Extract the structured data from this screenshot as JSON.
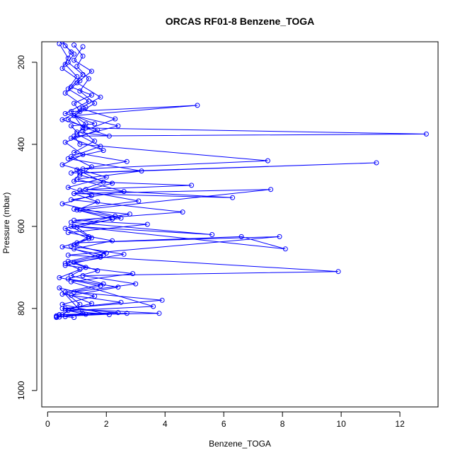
{
  "chart_data": {
    "type": "line",
    "title": "ORCAS RF01-8 Benzene_TOGA",
    "xlabel": "Benzene_TOGA",
    "ylabel": "Pressure (mbar)",
    "xlim": [
      -0.2,
      13.3
    ],
    "ylim": [
      1040,
      150
    ],
    "y_reversed": true,
    "grid": false,
    "legend": "none",
    "series_color": "#0000ff",
    "marker": "open-circle",
    "xticks": [
      0,
      2,
      4,
      6,
      8,
      10,
      12
    ],
    "yticks": [
      200,
      400,
      600,
      800,
      1000
    ],
    "series": [
      {
        "x": [
          0.6,
          0.9,
          0.7,
          1.2,
          0.8,
          1.5,
          0.9,
          1.1,
          0.7,
          1.3,
          2.1,
          1.0,
          0.8,
          1.6,
          0.9,
          5.1,
          0.8,
          1.2,
          12.9,
          0.9,
          1.1,
          7.5,
          1.2,
          0.8,
          11.2,
          1.1,
          0.9,
          4.9,
          1.3,
          6.3,
          0.9,
          7.6,
          1.1,
          2.8,
          0.8,
          5.6,
          0.9,
          8.1,
          6.6,
          1.0,
          7.9,
          0.7,
          9.9,
          1.2,
          3.0,
          0.9,
          3.9,
          0.5,
          2.4,
          0.4,
          0.3,
          0.6,
          0.9
        ],
        "y": [
          160,
          180,
          200,
          230,
          260,
          280,
          300,
          320,
          340,
          360,
          380,
          370,
          355,
          350,
          330,
          305,
          320,
          360,
          375,
          380,
          400,
          440,
          460,
          470,
          445,
          470,
          490,
          500,
          510,
          530,
          520,
          510,
          560,
          570,
          590,
          620,
          600,
          655,
          625,
          640,
          625,
          670,
          710,
          720,
          740,
          760,
          780,
          800,
          810,
          815,
          818,
          820,
          822
        ]
      },
      {
        "x": [
          0.5,
          0.8,
          0.6,
          1.0,
          0.7,
          1.4,
          0.6,
          2.4,
          0.8,
          1.9,
          0.7,
          3.2,
          1.0,
          2.6,
          0.8,
          4.6,
          0.9,
          3.4,
          0.7,
          2.2,
          0.9,
          1.8,
          0.6,
          2.9,
          0.8,
          3.6,
          0.7,
          2.1,
          0.5,
          1.6,
          0.4,
          1.2,
          0.3
        ],
        "y": [
          150,
          175,
          205,
          235,
          265,
          295,
          325,
          355,
          385,
          415,
          435,
          465,
          485,
          515,
          535,
          565,
          585,
          595,
          615,
          635,
          655,
          675,
          695,
          715,
          735,
          795,
          805,
          815,
          790,
          770,
          750,
          812,
          822
        ]
      },
      {
        "x": [
          0.4,
          0.7,
          0.5,
          1.1,
          0.6,
          1.3,
          0.5,
          1.7,
          0.6,
          1.2,
          0.5,
          2.0,
          0.7,
          1.5,
          0.5,
          2.3,
          0.6,
          1.4,
          0.5,
          1.9,
          0.6,
          1.1,
          0.4,
          1.8,
          0.5,
          2.5,
          0.6,
          3.8,
          0.4,
          2.7,
          0.3
        ],
        "y": [
          155,
          190,
          215,
          245,
          275,
          310,
          340,
          365,
          395,
          425,
          450,
          480,
          505,
          525,
          545,
          575,
          605,
          630,
          650,
          670,
          690,
          705,
          725,
          745,
          765,
          785,
          800,
          812,
          816,
          812,
          820
        ]
      },
      {
        "x": [
          0.9,
          1.2,
          1.0,
          1.4,
          1.1,
          1.6,
          0.9,
          1.3,
          1.0,
          1.8,
          0.8,
          1.5,
          1.1,
          2.2,
          0.9,
          1.7,
          1.0,
          2.5,
          0.8,
          1.4,
          0.9,
          2.0,
          0.7,
          1.3,
          0.8,
          1.9,
          0.6,
          1.1,
          0.5
        ],
        "y": [
          158,
          185,
          210,
          240,
          270,
          300,
          330,
          350,
          375,
          405,
          430,
          455,
          475,
          495,
          520,
          540,
          560,
          580,
          600,
          625,
          645,
          665,
          685,
          700,
          720,
          740,
          760,
          790,
          815
        ]
      },
      {
        "x": [
          1.2,
          0.9,
          1.5,
          1.0,
          1.8,
          1.1,
          2.3,
          1.2,
          1.6,
          0.9,
          2.7,
          1.0,
          1.9,
          1.1,
          3.1,
          0.9,
          2.2,
          1.0,
          1.5,
          0.8,
          2.6,
          0.9,
          1.7,
          0.7,
          2.4,
          0.8,
          1.5,
          0.6,
          1.3,
          0.4
        ],
        "y": [
          162,
          195,
          222,
          250,
          285,
          312,
          338,
          368,
          392,
          420,
          442,
          462,
          492,
          512,
          538,
          558,
          582,
          602,
          628,
          648,
          668,
          688,
          708,
          728,
          748,
          768,
          788,
          804,
          814,
          821
        ]
      }
    ]
  }
}
